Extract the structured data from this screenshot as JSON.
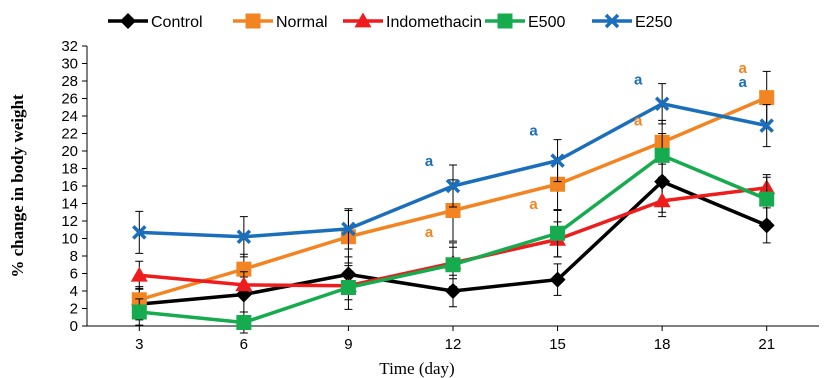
{
  "chart_data": {
    "type": "line",
    "title": "",
    "xlabel": "Time (day)",
    "ylabel": "% change in body weight",
    "x": [
      3,
      6,
      9,
      12,
      15,
      18,
      21
    ],
    "ylim": [
      0,
      32
    ],
    "yticks": [
      0,
      2,
      4,
      6,
      8,
      10,
      12,
      14,
      16,
      18,
      20,
      22,
      24,
      26,
      28,
      30,
      32
    ],
    "grid": false,
    "legend_position": "top",
    "series": [
      {
        "name": "Control",
        "color": "#000000",
        "marker": "diamond",
        "values": [
          2.5,
          3.6,
          5.9,
          4.0,
          5.3,
          16.5,
          11.5
        ],
        "errors": [
          1.8,
          2.0,
          2.0,
          1.8,
          1.8,
          3.5,
          2.0
        ]
      },
      {
        "name": "Normal",
        "color": "#f28522",
        "marker": "square",
        "values": [
          3.0,
          6.5,
          10.2,
          13.2,
          16.2,
          21.0,
          26.1
        ],
        "errors": [
          1.5,
          1.7,
          3.0,
          3.5,
          3.0,
          2.5,
          3.0
        ]
      },
      {
        "name": "Indomethacin",
        "color": "#ee1c1c",
        "marker": "triangle",
        "values": [
          5.8,
          4.7,
          4.6,
          7.2,
          9.9,
          14.3,
          15.8
        ],
        "errors": [
          1.6,
          1.5,
          1.6,
          1.8,
          2.0,
          1.8,
          1.5
        ]
      },
      {
        "name": "E500",
        "color": "#17ab4f",
        "marker": "square",
        "values": [
          1.6,
          0.4,
          4.4,
          7.0,
          10.6,
          19.5,
          14.5
        ],
        "errors": [
          1.5,
          1.2,
          2.5,
          2.5,
          2.7,
          2.5,
          2.5
        ]
      },
      {
        "name": "E250",
        "color": "#1b6fba",
        "marker": "x",
        "values": [
          10.7,
          10.2,
          11.1,
          16.0,
          18.9,
          25.4,
          22.9
        ],
        "errors": [
          2.4,
          2.3,
          2.3,
          2.4,
          2.4,
          2.3,
          2.4
        ]
      }
    ],
    "annotations": [
      {
        "text": "a",
        "x": 12,
        "y": 18.3,
        "color": "#1b6fba"
      },
      {
        "text": "a",
        "x": 15,
        "y": 21.8,
        "color": "#1b6fba"
      },
      {
        "text": "a",
        "x": 18,
        "y": 27.6,
        "color": "#1b6fba"
      },
      {
        "text": "a",
        "x": 21,
        "y": 27.3,
        "color": "#1b6fba"
      },
      {
        "text": "a",
        "x": 12,
        "y": 10.2,
        "color": "#f28522"
      },
      {
        "text": "a",
        "x": 15,
        "y": 13.4,
        "color": "#f28522"
      },
      {
        "text": "a",
        "x": 18,
        "y": 22.9,
        "color": "#f28522"
      },
      {
        "text": "a",
        "x": 21,
        "y": 28.9,
        "color": "#f28522"
      }
    ]
  }
}
